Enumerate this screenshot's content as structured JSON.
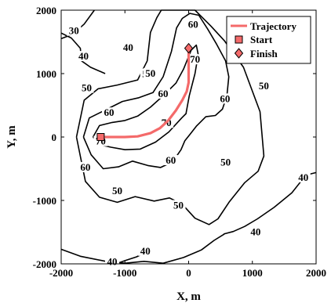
{
  "chart_data": {
    "type": "line",
    "title": "",
    "xlabel": "X, m",
    "ylabel": "Y, m",
    "xlim": [
      -2000,
      2000
    ],
    "ylim": [
      -2000,
      2000
    ],
    "x_ticks": [
      "-2000",
      "-1000",
      "0",
      "1000",
      "2000"
    ],
    "y_ticks": [
      "2000",
      "1000",
      "0",
      "-1000",
      "-2000"
    ],
    "grid": false,
    "legend_position": "top-right",
    "legend": [
      {
        "label": "Trajectory",
        "marker": "line",
        "color": "#f46a6a"
      },
      {
        "label": "Start",
        "marker": "square",
        "color": "#f46a6a"
      },
      {
        "label": "Finish",
        "marker": "diamond",
        "color": "#f46a6a"
      }
    ],
    "trajectory": {
      "name": "Trajectory",
      "color": "#f46a6a",
      "x": [
        -1380,
        -1200,
        -1000,
        -800,
        -600,
        -450,
        -320,
        -200,
        -100,
        -30,
        0,
        0,
        0,
        0
      ],
      "y": [
        0,
        0,
        0,
        10,
        60,
        140,
        260,
        420,
        580,
        720,
        860,
        1000,
        1200,
        1400
      ]
    },
    "start": {
      "label": "Start",
      "x": -1380,
      "y": 0
    },
    "finish": {
      "label": "Finish",
      "x": 0,
      "y": 1400
    },
    "contours": [
      {
        "level": "70",
        "x": [
          -1500,
          -1400,
          -1200,
          -1000,
          -800,
          -600,
          -400,
          -200,
          -80,
          40,
          120,
          150,
          100,
          10,
          -40,
          -40,
          -110,
          -310,
          -520,
          -760,
          -1000,
          -1220,
          -1400,
          -1500
        ],
        "y": [
          0,
          180,
          230,
          260,
          330,
          470,
          650,
          850,
          1070,
          1370,
          1450,
          1300,
          1000,
          650,
          380,
          370,
          300,
          80,
          -80,
          -190,
          -200,
          -160,
          -120,
          0
        ]
      },
      {
        "level": "60",
        "x": [
          -1650,
          -1560,
          -1320,
          -1040,
          -780,
          -560,
          -400,
          -270,
          -190,
          -100,
          20,
          160,
          300,
          440,
          580,
          630,
          600,
          530,
          420,
          270,
          120,
          20,
          -60,
          -120,
          -250,
          -440,
          -640,
          -880,
          -1100,
          -1340,
          -1530,
          -1650
        ],
        "y": [
          0,
          300,
          420,
          560,
          620,
          700,
          950,
          1350,
          1720,
          1870,
          1950,
          1920,
          1700,
          1460,
          1200,
          950,
          650,
          440,
          340,
          320,
          170,
          40,
          -60,
          -200,
          -390,
          -480,
          -450,
          -380,
          -470,
          -500,
          -280,
          0
        ]
      },
      {
        "level": "50",
        "x": [
          -1760,
          -1640,
          -1420,
          -1120,
          -800,
          -650,
          -600,
          -500,
          -430,
          100,
          350,
          560,
          860,
          1120,
          1180,
          1090,
          880,
          640,
          460,
          320,
          100,
          -100,
          -300,
          -540,
          -840,
          -1120,
          -1400,
          -1620,
          -1760
        ],
        "y": [
          0,
          580,
          760,
          820,
          900,
          1200,
          1650,
          1880,
          2000,
          2000,
          1750,
          1520,
          1100,
          400,
          -300,
          -540,
          -720,
          -1020,
          -1290,
          -1380,
          -1280,
          -1060,
          -960,
          -1010,
          -940,
          -1030,
          -950,
          -700,
          0
        ]
      },
      {
        "level": "40",
        "x": [
          -2000,
          -1840,
          -1700,
          -1680,
          -1540,
          -1310
        ],
        "y": [
          1640,
          1560,
          1400,
          1200,
          1100,
          1000
        ]
      },
      {
        "level": "40",
        "x": [
          550,
          700,
          880,
          1080,
          1340,
          1620,
          1840,
          2000
        ],
        "y": [
          -1530,
          -1490,
          -1410,
          -1290,
          -1110,
          -880,
          -600,
          -560
        ]
      },
      {
        "level": "40",
        "x": [
          -2000,
          -1700,
          -1300,
          -1000,
          -700,
          -400,
          -80,
          200,
          400,
          560
        ],
        "y": [
          -1770,
          -1880,
          -1960,
          -1990,
          -1960,
          -1990,
          -1900,
          -1780,
          -1630,
          -1530
        ]
      },
      {
        "level": "30",
        "x": [
          -2000,
          -1820,
          -1640,
          -1480
        ],
        "y": [
          1550,
          1620,
          1780,
          2000
        ]
      },
      {
        "level": "40",
        "x": [
          -1140,
          -1000,
          -820,
          -670
        ],
        "y": [
          -2000,
          -1950,
          -1890,
          -1820
        ]
      }
    ],
    "contour_labels": [
      {
        "text": "30",
        "x": -1800,
        "y": 1670
      },
      {
        "text": "40",
        "x": -1650,
        "y": 1270
      },
      {
        "text": "40",
        "x": -950,
        "y": 1410
      },
      {
        "text": "50",
        "x": -1600,
        "y": 770
      },
      {
        "text": "60",
        "x": -1250,
        "y": 380
      },
      {
        "text": "60",
        "x": -400,
        "y": 680
      },
      {
        "text": "50",
        "x": -650,
        "y": 990
      },
      {
        "text": "70",
        "x": -1380,
        "y": -70
      },
      {
        "text": "70",
        "x": -350,
        "y": 220
      },
      {
        "text": "70",
        "x": 100,
        "y": 1220
      },
      {
        "text": "50",
        "x": -600,
        "y": 1000
      },
      {
        "text": "60",
        "x": 570,
        "y": 600
      },
      {
        "text": "60",
        "x": 70,
        "y": 1770
      },
      {
        "text": "60",
        "x": -1620,
        "y": -480
      },
      {
        "text": "60",
        "x": -280,
        "y": -370
      },
      {
        "text": "50",
        "x": 1180,
        "y": 800
      },
      {
        "text": "50",
        "x": 580,
        "y": -400
      },
      {
        "text": "50",
        "x": -1120,
        "y": -850
      },
      {
        "text": "50",
        "x": -160,
        "y": -1080
      },
      {
        "text": "40",
        "x": 1800,
        "y": -640
      },
      {
        "text": "40",
        "x": 1050,
        "y": -1500
      },
      {
        "text": "40",
        "x": -1200,
        "y": -1970
      },
      {
        "text": "40",
        "x": -680,
        "y": -1800
      }
    ]
  }
}
